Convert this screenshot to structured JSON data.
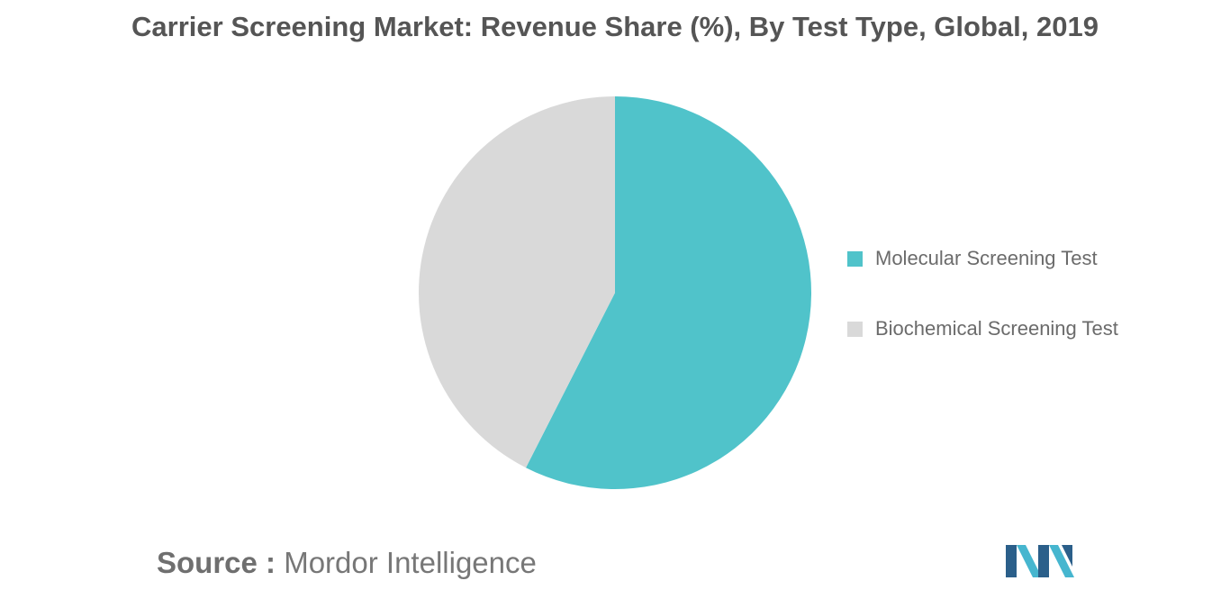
{
  "chart_data": {
    "type": "pie",
    "title": "Carrier Screening Market: Revenue Share (%), By Test Type, Global, 2019",
    "categories": [
      "Molecular Screening Test",
      "Biochemical Screening Test"
    ],
    "values": [
      57.5,
      42.5
    ],
    "colors": [
      "#50c3ca",
      "#d9d9d9"
    ],
    "legend_position": "right"
  },
  "source": {
    "prefix": "Source :",
    "text": "Mordor Intelligence"
  },
  "logo": {
    "icon": "mordor-intelligence-logo",
    "colors": [
      "#2b5f8a",
      "#46b6cf"
    ]
  }
}
